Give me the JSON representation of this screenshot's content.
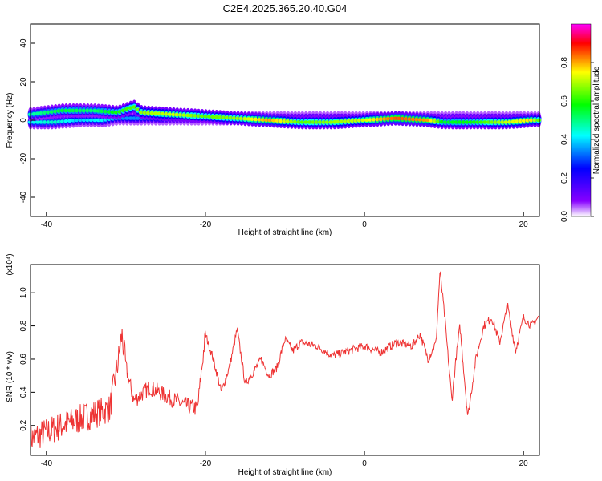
{
  "title": "C2E4.2025.365.20.40.G04",
  "chart_data": [
    {
      "type": "heatmap",
      "xlabel": "Height of straight line (km)",
      "ylabel": "Frequency (Hz)",
      "xlim": [
        -42,
        22
      ],
      "ylim": [
        -50,
        50
      ],
      "xticks": [
        -40,
        -20,
        0,
        20
      ],
      "yticks": [
        -40,
        -20,
        0,
        20,
        40
      ],
      "colorbar": {
        "label": "Normalized spectral amplitude",
        "range": [
          0,
          1
        ],
        "ticks": [
          0.0,
          0.2,
          0.4,
          0.6,
          0.8
        ],
        "colors": [
          "#ffffff",
          "#8800ff",
          "#0000ff",
          "#00ffff",
          "#00ff00",
          "#ffff00",
          "#ff0000",
          "#ff00ff"
        ]
      },
      "ridge": {
        "x": [
          -42,
          -38,
          -34,
          -31,
          -29,
          -28,
          -24,
          -20,
          -16,
          -12,
          -8,
          -4,
          0,
          4,
          8,
          10,
          14,
          18,
          21,
          22
        ],
        "y": [
          3,
          5,
          5,
          4,
          7,
          4,
          3,
          2,
          1,
          0,
          -1,
          -1,
          0,
          1,
          0,
          -1,
          -1,
          -1,
          0,
          0
        ],
        "amplitude": [
          0.5,
          0.6,
          0.55,
          0.65,
          0.7,
          0.75,
          0.8,
          0.7,
          0.75,
          0.9,
          0.7,
          0.75,
          0.8,
          0.95,
          0.9,
          0.6,
          0.65,
          0.8,
          0.85,
          0.7
        ]
      },
      "secondary": {
        "x": [
          -42,
          -39,
          -36,
          -33,
          -31
        ],
        "y": [
          -1,
          -1,
          0,
          0,
          1
        ],
        "amplitude": [
          0.5,
          0.55,
          0.45,
          0.5,
          0.4
        ]
      }
    },
    {
      "type": "line",
      "xlabel": "Height of straight line (km)",
      "ylabel": "SNR (10 * v/v)",
      "yscale_label": "(x10⁴)",
      "xlim": [
        -42,
        22
      ],
      "ylim": [
        0.02,
        1.17
      ],
      "xticks": [
        -40,
        -20,
        0,
        20
      ],
      "yticks": [
        0.2,
        0.4,
        0.6,
        0.8,
        1.0
      ],
      "series": [
        {
          "name": "SNR",
          "color": "#ee3333",
          "x": [
            -42,
            -38,
            -34,
            -32,
            -31,
            -30.5,
            -30,
            -29,
            -27,
            -25,
            -23,
            -21,
            -20,
            -19,
            -18,
            -17,
            -16,
            -15,
            -14,
            -13,
            -12,
            -11,
            -10,
            -9,
            -8,
            -6,
            -4,
            -2,
            0,
            2,
            4,
            6,
            7,
            8,
            9,
            9.5,
            10,
            11,
            11.5,
            12,
            13,
            14,
            15,
            16,
            17,
            18,
            19,
            20,
            21,
            22
          ],
          "y": [
            0.12,
            0.2,
            0.27,
            0.3,
            0.58,
            0.75,
            0.55,
            0.35,
            0.43,
            0.38,
            0.33,
            0.3,
            0.75,
            0.6,
            0.4,
            0.55,
            0.78,
            0.45,
            0.52,
            0.6,
            0.5,
            0.55,
            0.72,
            0.65,
            0.7,
            0.68,
            0.62,
            0.65,
            0.68,
            0.64,
            0.7,
            0.68,
            0.75,
            0.6,
            0.7,
            1.13,
            0.9,
            0.35,
            0.6,
            0.8,
            0.25,
            0.6,
            0.8,
            0.85,
            0.7,
            0.92,
            0.65,
            0.85,
            0.8,
            0.86
          ]
        }
      ]
    }
  ]
}
